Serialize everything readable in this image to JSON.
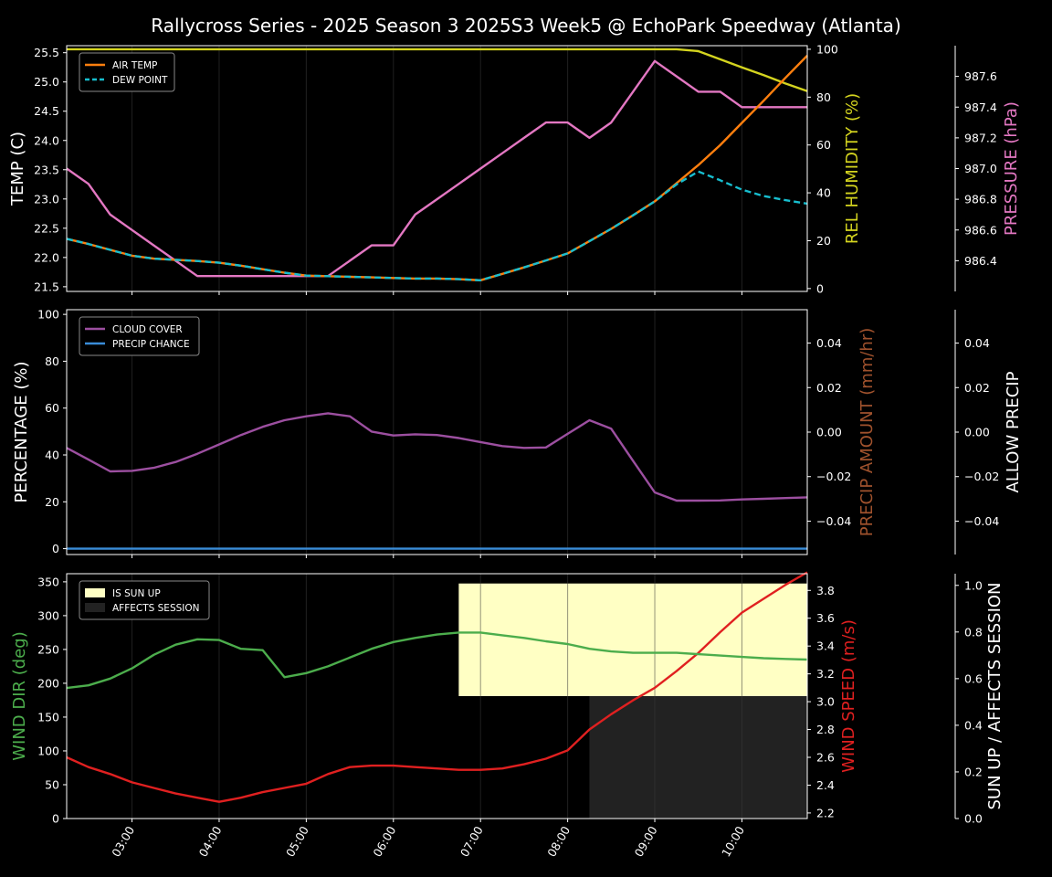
{
  "chart_data": {
    "title": "Rallycross Series - 2025 Season 3 2025S3 Week5 @ EchoPark Speedway (Atlanta)",
    "x_tick_labels": [
      "03:00",
      "04:00",
      "05:00",
      "06:00",
      "07:00",
      "08:00",
      "09:00",
      "10:00"
    ],
    "x_tick_hours": [
      3,
      4,
      5,
      6,
      7,
      8,
      9,
      10
    ],
    "x_range_hours": [
      2.25,
      10.75
    ],
    "x_hours": [
      2.25,
      2.5,
      2.75,
      3.0,
      3.25,
      3.5,
      3.75,
      4.0,
      4.25,
      4.5,
      4.75,
      5.0,
      5.25,
      5.5,
      5.75,
      6.0,
      6.25,
      6.5,
      6.75,
      7.0,
      7.25,
      7.5,
      7.75,
      8.0,
      8.25,
      8.5,
      8.75,
      9.0,
      9.25,
      9.5,
      9.75,
      10.0,
      10.25,
      10.5,
      10.75
    ],
    "panels": [
      {
        "type": "line",
        "ylabel": "TEMP (C)",
        "ylim": [
          21.42,
          25.62
        ],
        "yticks": [
          21.5,
          22.0,
          22.5,
          23.0,
          23.5,
          24.0,
          24.5,
          25.0,
          25.5
        ],
        "ytick_labels": [
          "21.5",
          "22.0",
          "22.5",
          "23.0",
          "23.5",
          "24.0",
          "24.5",
          "25.0",
          "25.5"
        ],
        "series": [
          {
            "name": "AIR TEMP",
            "color": "#ff7f0e",
            "dash": false,
            "values": [
              22.32,
              22.23,
              22.13,
              22.03,
              21.98,
              21.96,
              21.94,
              21.91,
              21.86,
              21.8,
              21.74,
              21.69,
              21.68,
              21.67,
              21.66,
              21.65,
              21.64,
              21.64,
              21.63,
              21.61,
              21.72,
              21.83,
              21.95,
              22.07,
              22.28,
              22.49,
              22.72,
              22.96,
              23.27,
              23.58,
              23.92,
              24.3,
              24.68,
              25.07,
              25.45
            ]
          },
          {
            "name": "DEW POINT",
            "color": "#17becf",
            "dash": true,
            "values": [
              22.32,
              22.23,
              22.13,
              22.03,
              21.98,
              21.96,
              21.94,
              21.91,
              21.86,
              21.8,
              21.74,
              21.69,
              21.68,
              21.67,
              21.66,
              21.65,
              21.64,
              21.64,
              21.63,
              21.61,
              21.72,
              21.83,
              21.95,
              22.07,
              22.28,
              22.49,
              22.72,
              22.96,
              23.25,
              23.47,
              23.32,
              23.16,
              23.05,
              22.98,
              22.92
            ]
          }
        ],
        "legend": "top-left",
        "right_axes": [
          {
            "label": "REL HUMIDITY (%)",
            "color": "#d4d41f",
            "ylim": [
              -1.2,
              101.5
            ],
            "yticks": [
              0,
              20,
              40,
              60,
              80,
              100
            ],
            "ytick_labels": [
              "0",
              "20",
              "40",
              "60",
              "80",
              "100"
            ],
            "series": [
              {
                "name": "REL HUMIDITY",
                "color": "#d4d41f",
                "values": [
                  100,
                  100,
                  100,
                  100,
                  100,
                  100,
                  100,
                  100,
                  100,
                  100,
                  100,
                  100,
                  100,
                  100,
                  100,
                  100,
                  100,
                  100,
                  100,
                  100,
                  100,
                  100,
                  100,
                  100,
                  100,
                  100,
                  100,
                  100,
                  100,
                  99.2,
                  95.8,
                  92.4,
                  89.2,
                  85.7,
                  82.5
                ]
              }
            ]
          },
          {
            "label": "PRESSURE (hPa)",
            "color": "#e377c2",
            "ylim": [
              986.2,
              987.8
            ],
            "yticks": [
              986.4,
              986.6,
              986.8,
              987.0,
              987.2,
              987.4,
              987.6
            ],
            "ytick_labels": [
              "986.4",
              "986.6",
              "986.8",
              "987.0",
              "987.2",
              "987.4",
              "987.6"
            ],
            "series": [
              {
                "name": "PRESSURE",
                "color": "#e377c2",
                "values": [
                  987.0,
                  986.9,
                  986.7,
                  986.6,
                  986.5,
                  986.4,
                  986.3,
                  986.3,
                  986.3,
                  986.3,
                  986.3,
                  986.3,
                  986.3,
                  986.4,
                  986.5,
                  986.5,
                  986.7,
                  986.8,
                  986.9,
                  987.0,
                  987.1,
                  987.2,
                  987.3,
                  987.3,
                  987.2,
                  987.3,
                  987.5,
                  987.7,
                  987.6,
                  987.5,
                  987.5,
                  987.4,
                  987.4,
                  987.4,
                  987.4
                ]
              }
            ]
          }
        ]
      },
      {
        "type": "line",
        "ylabel": "PERCENTAGE (%)",
        "ylim": [
          -2.5,
          102
        ],
        "yticks": [
          0,
          20,
          40,
          60,
          80,
          100
        ],
        "ytick_labels": [
          "0",
          "20",
          "40",
          "60",
          "80",
          "100"
        ],
        "series": [
          {
            "name": "CLOUD COVER",
            "color": "#9c4fa0",
            "dash": false,
            "values": [
              43,
              38,
              33,
              33.2,
              34.5,
              37,
              40.5,
              44.5,
              48.5,
              52,
              54.8,
              56.5,
              57.8,
              56.5,
              50,
              48.3,
              48.8,
              48.5,
              47.2,
              45.5,
              43.8,
              43,
              43.2,
              49,
              54.8,
              51.2,
              37.5,
              24,
              20.5,
              20.5,
              20.6,
              21,
              21.3,
              21.6,
              21.9
            ]
          },
          {
            "name": "PRECIP CHANCE",
            "color": "#3a8cd8",
            "dash": false,
            "values": [
              0,
              0,
              0,
              0,
              0,
              0,
              0,
              0,
              0,
              0,
              0,
              0,
              0,
              0,
              0,
              0,
              0,
              0,
              0,
              0,
              0,
              0,
              0,
              0,
              0,
              0,
              0,
              0,
              0,
              0,
              0,
              0,
              0,
              0,
              0
            ]
          }
        ],
        "legend": "top-left",
        "right_axes": [
          {
            "label": "PRECIP AMOUNT (mm/hr)",
            "color": "#a0522d",
            "ylim": [
              -0.055,
              0.055
            ],
            "yticks": [
              -0.04,
              -0.02,
              0.0,
              0.02,
              0.04
            ],
            "ytick_labels": [
              "−0.04",
              "−0.02",
              "0.00",
              "0.02",
              "0.04"
            ],
            "series": []
          },
          {
            "label": "ALLOW PRECIP",
            "color": "#ffffff",
            "ylim": [
              -0.055,
              0.055
            ],
            "yticks": [
              -0.04,
              -0.02,
              0.0,
              0.02,
              0.04
            ],
            "ytick_labels": [
              "−0.04",
              "−0.02",
              "0.00",
              "0.02",
              "0.04"
            ],
            "series": []
          }
        ]
      },
      {
        "type": "line",
        "ylabel": "WIND DIR (deg)",
        "ylabel_color": "#4cad4c",
        "ylim": [
          0,
          362
        ],
        "yticks": [
          0,
          50,
          100,
          150,
          200,
          250,
          300,
          350
        ],
        "ytick_labels": [
          "0",
          "50",
          "100",
          "150",
          "200",
          "250",
          "300",
          "350"
        ],
        "series": [
          {
            "name": "WIND DIR",
            "color": "#4cad4c",
            "dash": false,
            "values": [
              193,
              197,
              207,
              222,
              242,
              257,
              265,
              264,
              251,
              249,
              209,
              215,
              225,
              238,
              251,
              261,
              267,
              272,
              275,
              275,
              271,
              267,
              262,
              258,
              251,
              247,
              245,
              245,
              245,
              243,
              241,
              239,
              237,
              236,
              235
            ]
          }
        ],
        "spans": [
          {
            "name": "IS SUN UP",
            "color": "#ffffc4",
            "x0": 6.75,
            "x1": 10.75,
            "y0": 0.5,
            "y1": 0.96
          },
          {
            "name": "AFFECTS SESSION",
            "color": "#222222",
            "x0": 8.25,
            "x1": 10.75,
            "y0": 0.0,
            "y1": 0.5
          }
        ],
        "legend": "top-left",
        "right_axes": [
          {
            "label": "WIND SPEED (m/s)",
            "color": "#e02020",
            "ylim": [
              2.16,
              3.92
            ],
            "yticks": [
              2.2,
              2.4,
              2.6,
              2.8,
              3.0,
              3.2,
              3.4,
              3.6,
              3.8
            ],
            "ytick_labels": [
              "2.2",
              "2.4",
              "2.6",
              "2.8",
              "3.0",
              "3.2",
              "3.4",
              "3.6",
              "3.8"
            ],
            "series": [
              {
                "name": "WIND SPEED",
                "color": "#e02020",
                "values": [
                  2.6,
                  2.53,
                  2.48,
                  2.42,
                  2.38,
                  2.34,
                  2.31,
                  2.28,
                  2.31,
                  2.35,
                  2.38,
                  2.41,
                  2.48,
                  2.53,
                  2.54,
                  2.54,
                  2.53,
                  2.52,
                  2.51,
                  2.51,
                  2.52,
                  2.55,
                  2.59,
                  2.65,
                  2.8,
                  2.91,
                  3.01,
                  3.1,
                  3.22,
                  3.35,
                  3.5,
                  3.64,
                  3.74,
                  3.84,
                  3.93
                ]
              }
            ]
          },
          {
            "label": "SUN UP / AFFECTS SESSION",
            "color": "#ffffff",
            "ylim": [
              0.0,
              1.05
            ],
            "yticks": [
              0.0,
              0.2,
              0.4,
              0.6,
              0.8,
              1.0
            ],
            "ytick_labels": [
              "0.0",
              "0.2",
              "0.4",
              "0.6",
              "0.8",
              "1.0"
            ],
            "series": []
          }
        ]
      }
    ]
  }
}
